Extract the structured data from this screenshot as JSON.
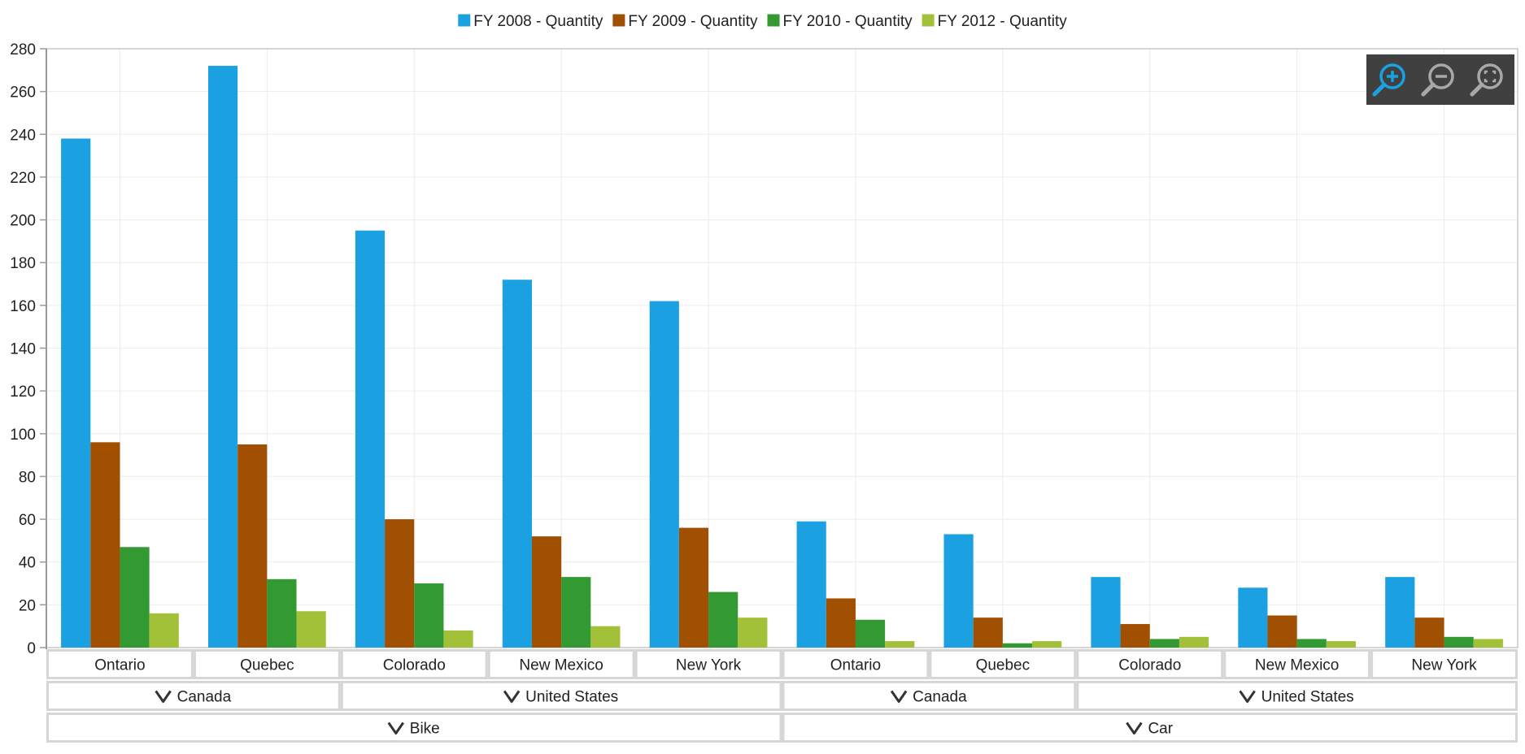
{
  "chart_data": {
    "type": "bar",
    "legend_position": "top",
    "grid": true,
    "ylim": [
      0,
      280
    ],
    "yticks": [
      0,
      20,
      40,
      60,
      80,
      100,
      120,
      140,
      160,
      180,
      200,
      220,
      240,
      260,
      280
    ],
    "categories": [
      "Ontario",
      "Quebec",
      "Colorado",
      "New Mexico",
      "New York",
      "Ontario",
      "Quebec",
      "Colorado",
      "New Mexico",
      "New York"
    ],
    "group_levels": [
      [
        {
          "label": "Canada",
          "span": 2
        },
        {
          "label": "United States",
          "span": 3
        },
        {
          "label": "Canada",
          "span": 2
        },
        {
          "label": "United States",
          "span": 3
        }
      ],
      [
        {
          "label": "Bike",
          "span": 5
        },
        {
          "label": "Car",
          "span": 5
        }
      ]
    ],
    "series": [
      {
        "name": "FY 2008 - Quantity",
        "color": "#1ba1e2",
        "values": [
          238,
          272,
          195,
          172,
          162,
          59,
          53,
          33,
          28,
          33
        ]
      },
      {
        "name": "FY 2009 - Quantity",
        "color": "#a05000",
        "values": [
          96,
          95,
          60,
          52,
          56,
          23,
          14,
          11,
          15,
          14
        ]
      },
      {
        "name": "FY 2010 - Quantity",
        "color": "#339933",
        "values": [
          47,
          32,
          30,
          33,
          26,
          13,
          2,
          4,
          4,
          5
        ]
      },
      {
        "name": "FY 2012 - Quantity",
        "color": "#a2c139",
        "values": [
          16,
          17,
          8,
          10,
          14,
          3,
          3,
          5,
          3,
          4
        ]
      }
    ]
  },
  "toolbar": {
    "icons": [
      "zoom-in-icon",
      "zoom-out-icon",
      "zoom-reset-icon"
    ],
    "background": "#404040",
    "active_color": "#1ba1e2",
    "inactive_color": "#a8a8a8"
  }
}
